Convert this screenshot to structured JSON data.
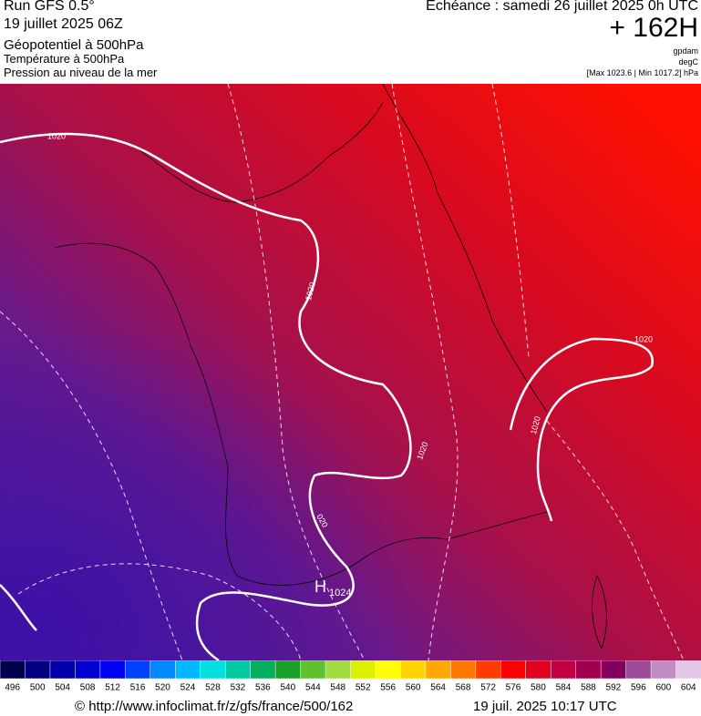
{
  "header": {
    "run": "Run GFS 0.5°",
    "date": "19 juillet 2025 06Z",
    "field1": "Géopotentiel à 500hPa",
    "field2": "Température à 500hPa",
    "field3": "Pression au niveau de la mer",
    "echeance": "Echéance : samedi 26 juillet 2025 0h UTC",
    "hours": "+ 162H",
    "unit1": "gpdam",
    "unit2": "degC",
    "pressure_range": "[Max 1023.6 | Min 1017.2] hPa"
  },
  "map": {
    "contour_labels": [
      "1020",
      "1020",
      "1020",
      "1020",
      "020",
      "1020"
    ],
    "high": {
      "symbol": "H",
      "value": "1024"
    }
  },
  "scale": {
    "values": [
      496,
      500,
      504,
      508,
      512,
      516,
      520,
      524,
      528,
      532,
      536,
      540,
      544,
      548,
      552,
      556,
      560,
      564,
      568,
      572,
      576,
      580,
      584,
      588,
      592,
      596,
      600,
      604
    ],
    "colors": [
      "#00004d",
      "#000080",
      "#0000a8",
      "#0000d0",
      "#0000f5",
      "#0040ff",
      "#0088ff",
      "#00b8ff",
      "#00e0e0",
      "#00c8a0",
      "#00b060",
      "#18a028",
      "#60c030",
      "#a0dc40",
      "#dcf000",
      "#ffff00",
      "#ffd400",
      "#ffa800",
      "#ff7800",
      "#ff3c00",
      "#ff0000",
      "#e00020",
      "#c00040",
      "#a00050",
      "#820060",
      "#9a4a98",
      "#c08cc4",
      "#e2c8e6"
    ]
  },
  "footer": {
    "url": "© http://www.infoclimat.fr/z/gfs/france/500/162",
    "timestamp": "19 juil. 2025 10:17 UTC"
  }
}
